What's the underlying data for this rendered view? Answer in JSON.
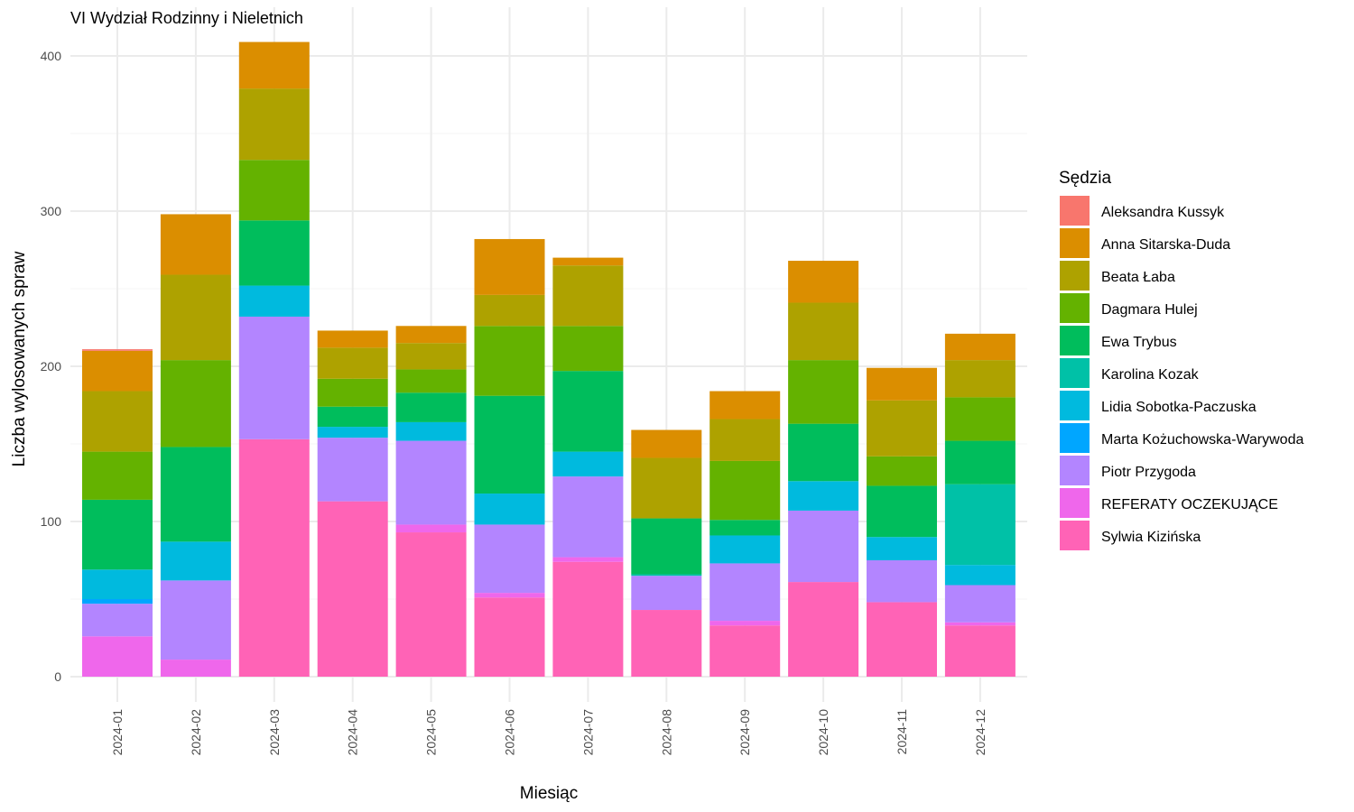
{
  "chart_data": {
    "type": "bar",
    "stacked": true,
    "title": "VI Wydział Rodzinny i Nieletnich",
    "xlabel": "Miesiąc",
    "ylabel": "Liczba wylosowanych spraw",
    "ylim": [
      0,
      410
    ],
    "yticks": [
      0,
      100,
      200,
      300,
      400
    ],
    "grid": true,
    "legend": {
      "title": "Sędzia",
      "position": "right"
    },
    "categories": [
      "2024-01",
      "2024-02",
      "2024-03",
      "2024-04",
      "2024-05",
      "2024-06",
      "2024-07",
      "2024-08",
      "2024-09",
      "2024-10",
      "2024-11",
      "2024-12"
    ],
    "series": [
      {
        "name": "Aleksandra Kussyk",
        "color": "#F8766D",
        "values": [
          1,
          0,
          0,
          0,
          0,
          0,
          0,
          0,
          0,
          0,
          0,
          0
        ]
      },
      {
        "name": "Anna Sitarska-Duda",
        "color": "#DB8E00",
        "values": [
          26,
          39,
          30,
          11,
          11,
          36,
          5,
          18,
          18,
          27,
          21,
          17
        ]
      },
      {
        "name": "Beata Łaba",
        "color": "#AEA200",
        "values": [
          39,
          55,
          46,
          20,
          17,
          20,
          39,
          39,
          27,
          37,
          36,
          24
        ]
      },
      {
        "name": "Dagmara Hulej",
        "color": "#64B200",
        "values": [
          31,
          56,
          39,
          18,
          15,
          45,
          29,
          0,
          38,
          41,
          19,
          28
        ]
      },
      {
        "name": "Ewa Trybus",
        "color": "#00BD5C",
        "values": [
          45,
          61,
          42,
          13,
          19,
          63,
          52,
          36,
          10,
          37,
          33,
          28
        ]
      },
      {
        "name": "Karolina Kozak",
        "color": "#00C1A7",
        "values": [
          0,
          0,
          0,
          0,
          0,
          0,
          0,
          1,
          0,
          0,
          0,
          52
        ]
      },
      {
        "name": "Lidia Sobotka-Paczuska",
        "color": "#00BADE",
        "values": [
          19,
          25,
          20,
          7,
          12,
          20,
          16,
          0,
          18,
          19,
          15,
          13
        ]
      },
      {
        "name": "Marta Kożuchowska-Warywoda",
        "color": "#00A6FF",
        "values": [
          3,
          0,
          0,
          0,
          0,
          0,
          0,
          0,
          0,
          0,
          0,
          0
        ]
      },
      {
        "name": "Piotr Przygoda",
        "color": "#B385FF",
        "values": [
          21,
          51,
          79,
          41,
          54,
          44,
          52,
          22,
          37,
          46,
          27,
          24
        ]
      },
      {
        "name": "REFERATY OCZEKUJĄCE",
        "color": "#EF67EB",
        "values": [
          26,
          11,
          0,
          0,
          5,
          3,
          3,
          0,
          3,
          0,
          0,
          2
        ]
      },
      {
        "name": "Sylwia Kizińska",
        "color": "#FF63B6",
        "values": [
          0,
          0,
          153,
          113,
          93,
          51,
          74,
          43,
          33,
          61,
          48,
          33
        ]
      }
    ]
  }
}
